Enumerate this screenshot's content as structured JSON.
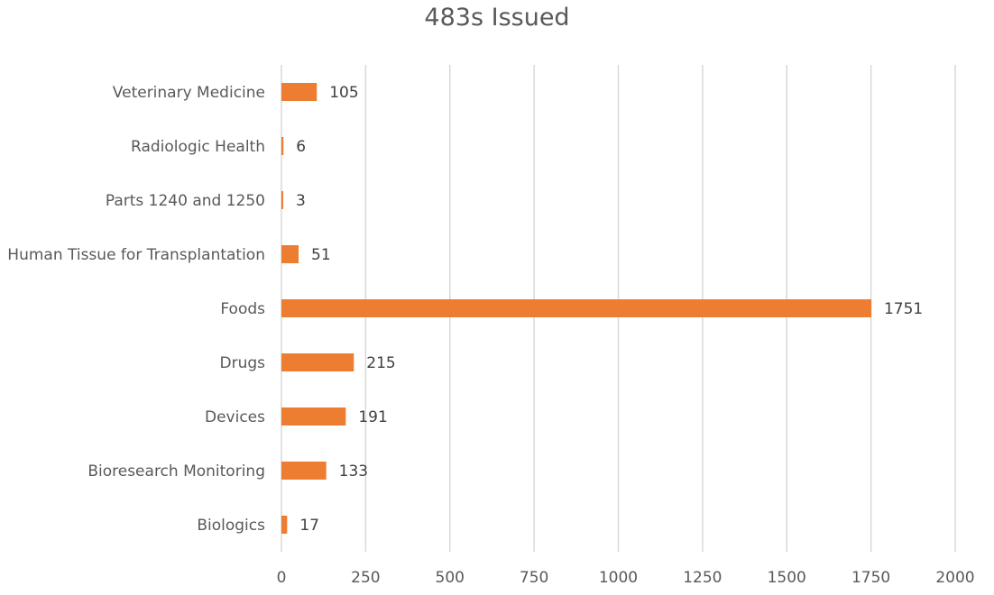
{
  "chart_data": {
    "type": "bar",
    "orientation": "horizontal",
    "title": "483s Issued",
    "xlabel": "",
    "ylabel": "",
    "categories": [
      "Biologics",
      "Bioresearch Monitoring",
      "Devices",
      "Drugs",
      "Foods",
      "Human Tissue for Transplantation",
      "Parts 1240 and 1250",
      "Radiologic Health",
      "Veterinary Medicine"
    ],
    "values": [
      17,
      133,
      191,
      215,
      1751,
      51,
      3,
      6,
      105
    ],
    "data_labels": [
      "17",
      "133",
      "191",
      "215",
      "1751",
      "51",
      "3",
      "6",
      "105"
    ],
    "xlim": [
      0,
      2000
    ],
    "x_ticks": [
      "0",
      "250",
      "500",
      "750",
      "1000",
      "1250",
      "1500",
      "1750",
      "2000"
    ],
    "grid": "vertical",
    "legend": "none",
    "bar_color": "#ED7D31",
    "grid_color": "#D9D9D9",
    "text_color": "#595959"
  }
}
